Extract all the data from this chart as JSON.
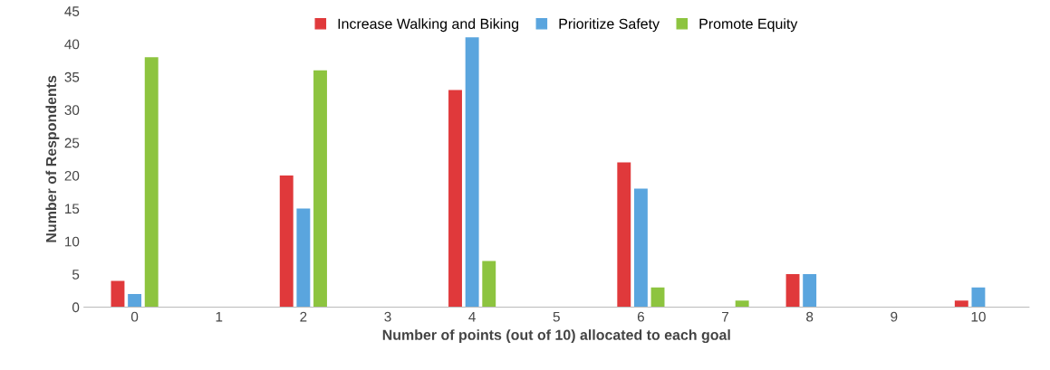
{
  "chart_data": {
    "type": "bar",
    "xlabel": "Number of points (out of 10) allocated to each goal",
    "ylabel": "Number of Respondents",
    "categories": [
      "0",
      "1",
      "2",
      "3",
      "4",
      "5",
      "6",
      "7",
      "8",
      "9",
      "10"
    ],
    "series": [
      {
        "name": "Increase Walking and Biking",
        "color": "#e0393b",
        "values": [
          4,
          0,
          20,
          0,
          33,
          0,
          22,
          0,
          5,
          0,
          1
        ]
      },
      {
        "name": "Prioritize Safety",
        "color": "#5aa5de",
        "values": [
          2,
          0,
          15,
          0,
          41,
          0,
          18,
          0,
          5,
          0,
          3
        ]
      },
      {
        "name": "Promote Equity",
        "color": "#8dc43f",
        "values": [
          38,
          0,
          36,
          0,
          7,
          0,
          3,
          1,
          0,
          0,
          0
        ]
      }
    ],
    "ylim": [
      0,
      45
    ],
    "yticks": [
      0,
      5,
      10,
      15,
      20,
      25,
      30,
      35,
      40,
      45
    ],
    "grid": false,
    "legend": "top"
  }
}
